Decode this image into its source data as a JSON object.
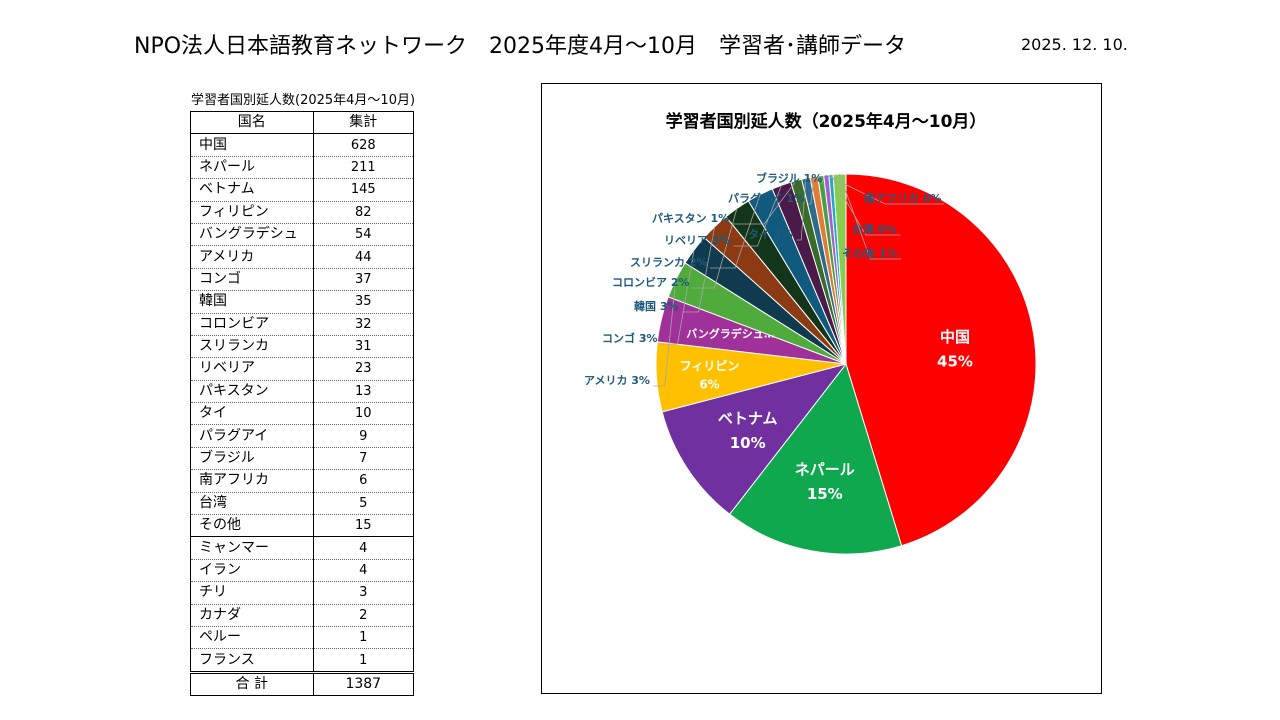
{
  "header": {
    "title": "NPO法人日本語教育ネットワーク　2025年度4月～10月　学習者･講師データ",
    "date": "2025. 12. 10."
  },
  "table": {
    "caption": "学習者国別延人数(2025年4月～10月)",
    "col_country": "国名",
    "col_total": "集計",
    "rows": [
      {
        "name": "中国",
        "value": "628"
      },
      {
        "name": "ネパール",
        "value": "211"
      },
      {
        "name": "ベトナム",
        "value": "145"
      },
      {
        "name": "フィリピン",
        "value": "82"
      },
      {
        "name": "バングラデシュ",
        "value": "54"
      },
      {
        "name": "アメリカ",
        "value": "44"
      },
      {
        "name": "コンゴ",
        "value": "37"
      },
      {
        "name": "韓国",
        "value": "35"
      },
      {
        "name": "コロンビア",
        "value": "32"
      },
      {
        "name": "スリランカ",
        "value": "31"
      },
      {
        "name": "リベリア",
        "value": "23"
      },
      {
        "name": "パキスタン",
        "value": "13"
      },
      {
        "name": "タイ",
        "value": "10"
      },
      {
        "name": "パラグアイ",
        "value": "9"
      },
      {
        "name": "ブラジル",
        "value": "7"
      },
      {
        "name": "南アフリカ",
        "value": "6"
      },
      {
        "name": "台湾",
        "value": "5"
      },
      {
        "name": "その他",
        "value": "15"
      }
    ],
    "other_rows": [
      {
        "name": "ミャンマー",
        "value": "4"
      },
      {
        "name": "イラン",
        "value": "4"
      },
      {
        "name": "チリ",
        "value": "3"
      },
      {
        "name": "カナダ",
        "value": "2"
      },
      {
        "name": "ペルー",
        "value": "1"
      },
      {
        "name": "フランス",
        "value": "1"
      }
    ],
    "total_label": "合 計",
    "total_value": "1387"
  },
  "chart_data": {
    "type": "pie",
    "title": "学習者国別延人数（2025年4月～10月）",
    "categories": [
      "中国",
      "ネパール",
      "ベトナム",
      "フィリピン",
      "バングラデシュ",
      "アメリカ",
      "コンゴ",
      "韓国",
      "コロンビア",
      "スリランカ",
      "リベリア",
      "パキスタン",
      "タイ",
      "パラグアイ",
      "ブラジル",
      "南アフリカ",
      "台湾",
      "その他"
    ],
    "values": [
      628,
      211,
      145,
      82,
      54,
      44,
      37,
      35,
      32,
      31,
      23,
      13,
      10,
      9,
      7,
      6,
      5,
      15
    ],
    "labels": [
      "中国",
      "ネパール",
      "ベトナム",
      "フィリピン",
      "バングラデシュ…",
      "アメリカ",
      "コンゴ",
      "韓国",
      "コロンビア",
      "スリランカ",
      "リベリア",
      "パキスタン",
      "タイ",
      "パラグアイ",
      "ブラジル",
      "南アフリカ",
      "台湾",
      "その他"
    ],
    "percent_labels": [
      "45%",
      "15%",
      "10%",
      "6%",
      "",
      "3%",
      "3%",
      "3%",
      "2%",
      "2%",
      "2%",
      "1%",
      "1%",
      "1%",
      "1%",
      "0%",
      "0%",
      "1%"
    ],
    "colors": [
      "#ff0000",
      "#0fa84e",
      "#7030a0",
      "#ffc000",
      "#a0309a",
      "#4eab3c",
      "#103a4e",
      "#8b3a14",
      "#13361a",
      "#0f5a7e",
      "#4a1a4a",
      "#3a6b2a",
      "#2e6a8c",
      "#e07b39",
      "#4aa040",
      "#a060d0",
      "#20a8c8",
      "#8acc50"
    ],
    "outside_label_color": "#1f5a7a"
  }
}
